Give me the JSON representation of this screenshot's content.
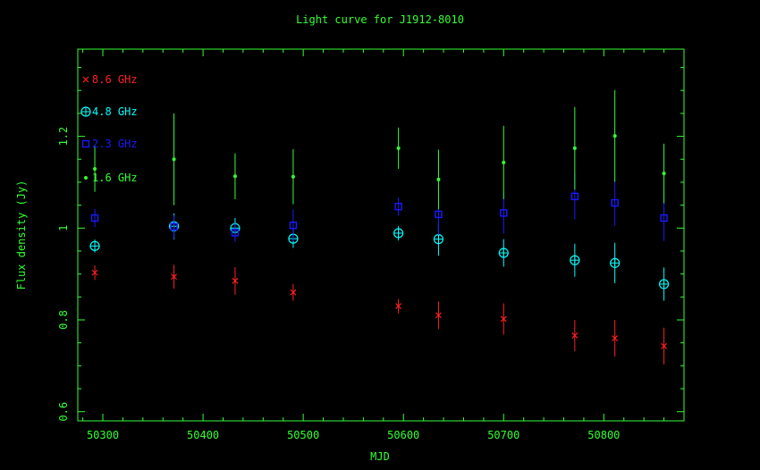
{
  "chart_data": {
    "type": "scatter",
    "title": "Light curve for J1912-8010",
    "xlabel": "MJD",
    "ylabel": "Flux density (Jy)",
    "xlim": [
      50275,
      50880
    ],
    "ylim": [
      0.58,
      1.39
    ],
    "x_ticks": [
      50300,
      50400,
      50500,
      50600,
      50700,
      50800
    ],
    "y_ticks": [
      0.6,
      0.8,
      1,
      1.2
    ],
    "y_tick_labels": [
      "0.6",
      "0.8",
      "1",
      "1.2"
    ],
    "legend_position": "top-left",
    "axis_color": "#33ff33",
    "series": [
      {
        "name": "8.6 GHz",
        "marker": "cross",
        "color": "#ff2020",
        "x": [
          50292,
          50371,
          50432,
          50490,
          50595,
          50635,
          50700,
          50771,
          50811,
          50860
        ],
        "y": [
          0.903,
          0.894,
          0.885,
          0.86,
          0.83,
          0.81,
          0.802,
          0.766,
          0.76,
          0.743
        ],
        "err": [
          0.016,
          0.026,
          0.03,
          0.018,
          0.016,
          0.03,
          0.034,
          0.034,
          0.04,
          0.04
        ]
      },
      {
        "name": "4.8 GHz",
        "marker": "circle-plus",
        "color": "#00ffff",
        "x": [
          50292,
          50371,
          50432,
          50490,
          50595,
          50635,
          50700,
          50771,
          50811,
          50860
        ],
        "y": [
          0.961,
          1.004,
          1.0,
          0.977,
          0.989,
          0.976,
          0.946,
          0.93,
          0.924,
          0.878
        ],
        "err": [
          0.014,
          0.028,
          0.022,
          0.02,
          0.016,
          0.036,
          0.03,
          0.036,
          0.044,
          0.036
        ]
      },
      {
        "name": "2.3 GHz",
        "marker": "square",
        "color": "#1a1aff",
        "x": [
          50292,
          50371,
          50432,
          50490,
          50595,
          50635,
          50700,
          50771,
          50811,
          50860
        ],
        "y": [
          1.022,
          1.003,
          0.99,
          1.006,
          1.047,
          1.03,
          1.033,
          1.069,
          1.055,
          1.022
        ],
        "err": [
          0.02,
          0.025,
          0.02,
          0.035,
          0.02,
          0.045,
          0.045,
          0.05,
          0.05,
          0.05
        ]
      },
      {
        "name": "1.6 GHz",
        "marker": "dot",
        "color": "#33ff33",
        "x": [
          50292,
          50371,
          50432,
          50490,
          50595,
          50635,
          50700,
          50771,
          50811,
          50860
        ],
        "y": [
          1.129,
          1.15,
          1.113,
          1.112,
          1.174,
          1.106,
          1.143,
          1.174,
          1.201,
          1.119
        ],
        "err": [
          0.05,
          0.1,
          0.05,
          0.06,
          0.045,
          0.065,
          0.08,
          0.09,
          0.1,
          0.065
        ]
      }
    ]
  }
}
